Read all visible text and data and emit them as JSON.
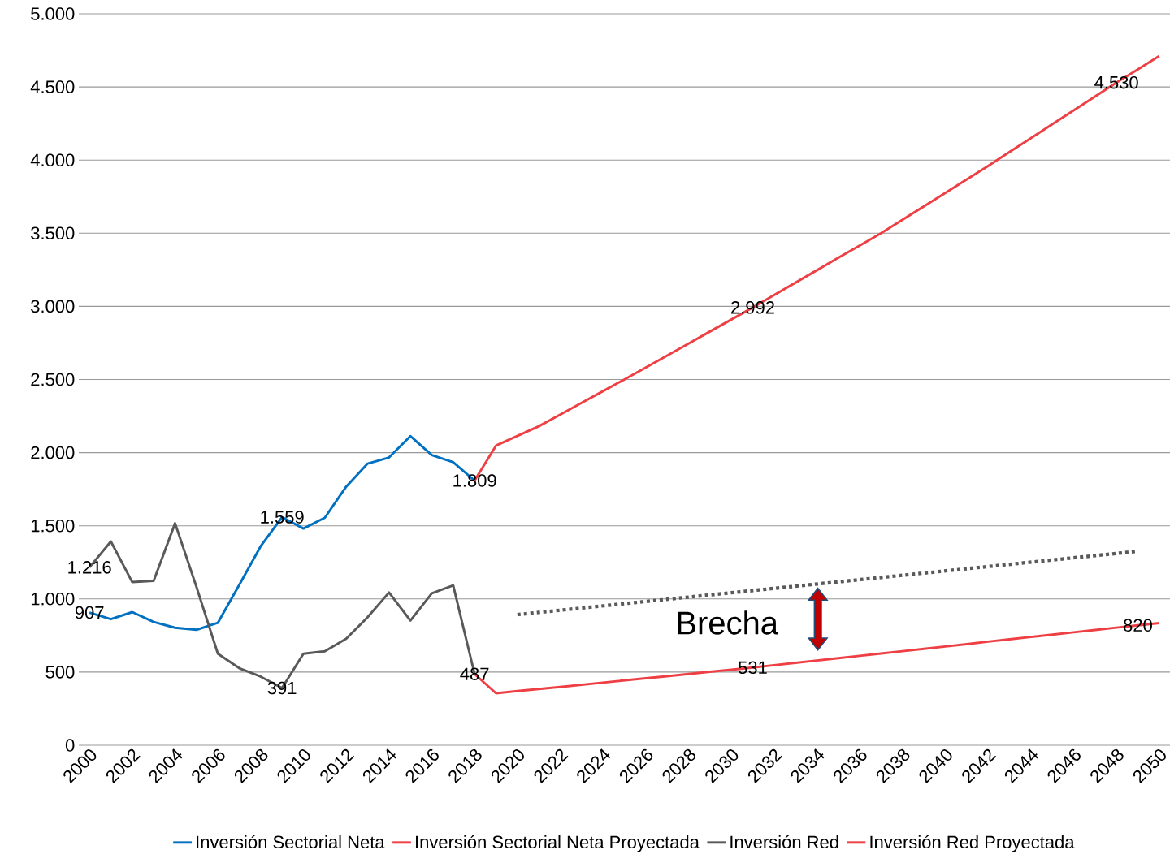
{
  "chart_data": {
    "type": "line",
    "categories": [
      "2000",
      null,
      "2002",
      null,
      "2004",
      null,
      "2006",
      null,
      "2008",
      null,
      "2010",
      null,
      "2012",
      null,
      "2014",
      null,
      "2016",
      null,
      "2018",
      null,
      "2020",
      null,
      "2022",
      null,
      "2024",
      null,
      "2026",
      null,
      "2028",
      null,
      "2030",
      null,
      "2032",
      null,
      "2034",
      null,
      "2036",
      null,
      "2038",
      null,
      "2040",
      null,
      "2042",
      null,
      "2044",
      null,
      "2046",
      null,
      "2048",
      null,
      "2050"
    ],
    "series": [
      {
        "name": "Inversión Sectorial Neta",
        "color": "#0070c0",
        "values": [
          907,
          862,
          910,
          843,
          803,
          789,
          837,
          1096,
          1360,
          1559,
          1481,
          1555,
          1768,
          1925,
          1967,
          2113,
          1983,
          1935,
          1809,
          null,
          null,
          null,
          null,
          null,
          null,
          null,
          null,
          null,
          null,
          null,
          null,
          null,
          null,
          null,
          null,
          null,
          null,
          null,
          null,
          null,
          null,
          null,
          null,
          null,
          null,
          null,
          null,
          null,
          null,
          null,
          null
        ],
        "value_labels": [
          "907",
          null,
          null,
          null,
          null,
          null,
          null,
          null,
          null,
          "1.559",
          null,
          null,
          null,
          null,
          null,
          null,
          null,
          null,
          "1.809",
          null,
          null,
          null,
          null,
          null,
          null,
          null,
          null,
          null,
          null,
          null,
          null,
          null,
          null,
          null,
          null,
          null,
          null,
          null,
          null,
          null,
          null,
          null,
          null,
          null,
          null,
          null,
          null,
          null,
          null,
          null,
          null
        ]
      },
      {
        "name": "Inversión Sectorial Neta Proyectada",
        "color": "#ee4044",
        "values": [
          null,
          null,
          null,
          null,
          null,
          null,
          null,
          null,
          null,
          null,
          null,
          null,
          null,
          null,
          null,
          null,
          null,
          null,
          1809,
          2048,
          2114,
          2180,
          2260,
          2340,
          2420,
          2500,
          2582,
          2664,
          2746,
          2828,
          2910,
          2992,
          3077,
          3162,
          3247,
          3332,
          3416,
          3500,
          3592,
          3684,
          3776,
          3868,
          3960,
          4055,
          4150,
          4245,
          4340,
          4435,
          4530,
          4620,
          4711
        ],
        "value_labels": [
          null,
          null,
          null,
          null,
          null,
          null,
          null,
          null,
          null,
          null,
          null,
          null,
          null,
          null,
          null,
          null,
          null,
          null,
          null,
          null,
          null,
          null,
          null,
          null,
          null,
          null,
          null,
          null,
          null,
          null,
          null,
          "2.992",
          null,
          null,
          null,
          null,
          null,
          null,
          null,
          null,
          null,
          null,
          null,
          null,
          null,
          null,
          null,
          null,
          "4.530",
          null,
          null
        ]
      },
      {
        "name": "Inversión Red",
        "color": "#595959",
        "values": [
          1216,
          1393,
          1115,
          1124,
          1517,
          1082,
          626,
          527,
          469,
          391,
          626,
          642,
          728,
          875,
          1044,
          852,
          1038,
          1092,
          487,
          null,
          null,
          null,
          null,
          null,
          null,
          null,
          null,
          null,
          null,
          null,
          null,
          null,
          null,
          null,
          null,
          null,
          null,
          null,
          null,
          null,
          null,
          null,
          null,
          null,
          null,
          null,
          null,
          null,
          null,
          null,
          null
        ],
        "value_labels": [
          "1.216",
          null,
          null,
          null,
          null,
          null,
          null,
          null,
          null,
          "391",
          null,
          null,
          null,
          null,
          null,
          null,
          null,
          null,
          "487",
          null,
          null,
          null,
          null,
          null,
          null,
          null,
          null,
          null,
          null,
          null,
          null,
          null,
          null,
          null,
          null,
          null,
          null,
          null,
          null,
          null,
          null,
          null,
          null,
          null,
          null,
          null,
          null,
          null,
          null,
          null,
          null
        ]
      },
      {
        "name": "Inversión Red Proyectada",
        "color": "#ee4044",
        "values": [
          null,
          null,
          null,
          null,
          null,
          null,
          null,
          null,
          null,
          null,
          null,
          null,
          null,
          null,
          null,
          null,
          null,
          null,
          487,
          355,
          370,
          384,
          398,
          413,
          428,
          443,
          458,
          472,
          487,
          502,
          516,
          531,
          547,
          563,
          579,
          595,
          611,
          627,
          643,
          659,
          675,
          691,
          708,
          724,
          740,
          756,
          772,
          788,
          804,
          820,
          835
        ],
        "value_labels": [
          null,
          null,
          null,
          null,
          null,
          null,
          null,
          null,
          null,
          null,
          null,
          null,
          null,
          null,
          null,
          null,
          null,
          null,
          null,
          null,
          null,
          null,
          null,
          null,
          null,
          null,
          null,
          null,
          null,
          null,
          null,
          "531",
          null,
          null,
          null,
          null,
          null,
          null,
          null,
          null,
          null,
          null,
          null,
          null,
          null,
          null,
          null,
          null,
          null,
          "820",
          null
        ]
      },
      {
        "color": "#595959",
        "line_style": "dotted",
        "values": [
          null,
          null,
          null,
          null,
          null,
          null,
          null,
          null,
          null,
          null,
          null,
          null,
          null,
          null,
          null,
          null,
          null,
          null,
          null,
          null,
          893,
          null,
          null,
          null,
          null,
          null,
          null,
          null,
          null,
          null,
          null,
          null,
          null,
          null,
          null,
          null,
          null,
          null,
          null,
          null,
          null,
          null,
          null,
          null,
          null,
          null,
          null,
          null,
          null,
          1326,
          null
        ]
      }
    ],
    "ylim": [
      0,
      5000
    ],
    "yticks": [
      0,
      500,
      {
        "value": 1000,
        "label": "1.000"
      },
      {
        "value": 1500,
        "label": "1.500"
      },
      {
        "value": 2000,
        "label": "2.000"
      },
      {
        "value": 2500,
        "label": "2.500"
      },
      {
        "value": 3000,
        "label": "3.000"
      },
      {
        "value": 3500,
        "label": "3.500"
      },
      {
        "value": 4000,
        "label": "4.000"
      },
      {
        "value": 4500,
        "label": "4.500"
      },
      {
        "value": 5000,
        "label": "5.000"
      }
    ],
    "grid": "y",
    "legend": "bottom",
    "annotations": [
      "Brecha"
    ]
  }
}
